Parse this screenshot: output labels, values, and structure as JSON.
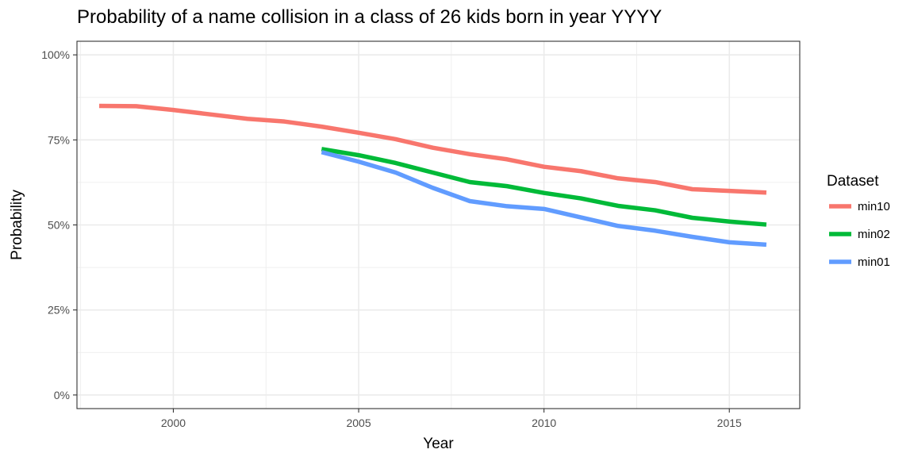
{
  "chart_data": {
    "type": "line",
    "title": "Probability of a name collision in a class of 26 kids born in year YYYY",
    "xlabel": "Year",
    "ylabel": "Probability",
    "xlim": [
      1997.4,
      2016.9
    ],
    "ylim": [
      -0.04,
      1.04
    ],
    "x_ticks": [
      2000,
      2005,
      2010,
      2015
    ],
    "x_tick_labels": [
      "2000",
      "2005",
      "2010",
      "2015"
    ],
    "x_minor_ticks": [
      1997.5,
      2002.5,
      2007.5,
      2012.5
    ],
    "y_ticks": [
      0,
      0.25,
      0.5,
      0.75,
      1
    ],
    "y_tick_labels": [
      "0%",
      "25%",
      "50%",
      "75%",
      "100%"
    ],
    "y_minor_ticks": [
      0.125,
      0.375,
      0.625,
      0.875
    ],
    "grid": true,
    "legend": {
      "title": "Dataset",
      "position": "right"
    },
    "series": [
      {
        "name": "min10",
        "color": "#F8766D",
        "x": [
          1998,
          1999,
          2000,
          2001,
          2002,
          2003,
          2004,
          2005,
          2006,
          2007,
          2008,
          2009,
          2010,
          2011,
          2012,
          2013,
          2014,
          2015,
          2016
        ],
        "y": [
          0.85,
          0.849,
          0.838,
          0.825,
          0.812,
          0.804,
          0.789,
          0.771,
          0.752,
          0.727,
          0.708,
          0.693,
          0.671,
          0.658,
          0.637,
          0.626,
          0.605,
          0.6,
          0.595
        ]
      },
      {
        "name": "min02",
        "color": "#00BA38",
        "x": [
          2004,
          2005,
          2006,
          2007,
          2008,
          2009,
          2010,
          2011,
          2012,
          2013,
          2014,
          2015,
          2016
        ],
        "y": [
          0.723,
          0.705,
          0.682,
          0.654,
          0.626,
          0.614,
          0.594,
          0.578,
          0.556,
          0.543,
          0.521,
          0.51,
          0.501
        ]
      },
      {
        "name": "min01",
        "color": "#619CFF",
        "x": [
          2004,
          2005,
          2006,
          2007,
          2008,
          2009,
          2010,
          2011,
          2012,
          2013,
          2014,
          2015,
          2016
        ],
        "y": [
          0.714,
          0.686,
          0.654,
          0.609,
          0.57,
          0.555,
          0.547,
          0.522,
          0.497,
          0.483,
          0.465,
          0.449,
          0.442
        ]
      }
    ]
  }
}
